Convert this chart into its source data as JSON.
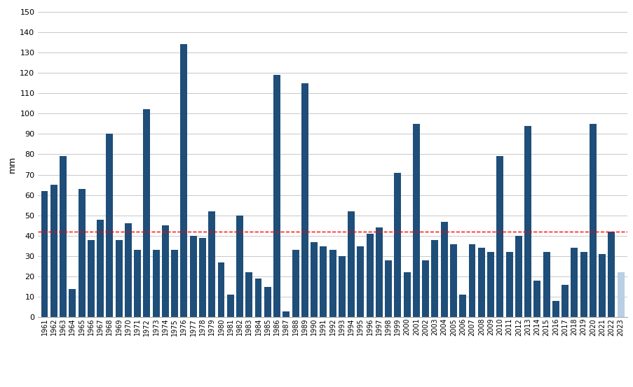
{
  "years": [
    1961,
    1962,
    1963,
    1964,
    1965,
    1966,
    1967,
    1968,
    1969,
    1970,
    1971,
    1972,
    1973,
    1974,
    1975,
    1976,
    1977,
    1978,
    1979,
    1980,
    1981,
    1982,
    1983,
    1984,
    1985,
    1986,
    1987,
    1988,
    1989,
    1990,
    1991,
    1992,
    1993,
    1994,
    1995,
    1996,
    1997,
    1998,
    1999,
    2000,
    2001,
    2002,
    2003,
    2004,
    2005,
    2006,
    2007,
    2008,
    2009,
    2010,
    2011,
    2012,
    2013,
    2014,
    2015,
    2016,
    2017,
    2018,
    2019,
    2020,
    2021,
    2022,
    2023
  ],
  "values": [
    62,
    65,
    79,
    14,
    63,
    38,
    48,
    90,
    38,
    46,
    33,
    102,
    33,
    45,
    33,
    134,
    40,
    39,
    52,
    27,
    11,
    50,
    22,
    19,
    15,
    119,
    3,
    33,
    115,
    37,
    35,
    33,
    30,
    52,
    35,
    41,
    44,
    28,
    71,
    22,
    95,
    28,
    38,
    47,
    36,
    11,
    36,
    34,
    32,
    79,
    32,
    40,
    94,
    18,
    32,
    8,
    16,
    34,
    32,
    95,
    31,
    42,
    22
  ],
  "bar_color": "#1f4e79",
  "last_bar_color": "#b8cfe4",
  "mean_value": 42,
  "mean_color": "#ff0000",
  "ylabel": "mm",
  "ylim": [
    0,
    150
  ],
  "yticks": [
    0,
    10,
    20,
    30,
    40,
    50,
    60,
    70,
    80,
    90,
    100,
    110,
    120,
    130,
    140,
    150
  ],
  "grid_color": "#c8c8c8",
  "background_color": "#ffffff"
}
